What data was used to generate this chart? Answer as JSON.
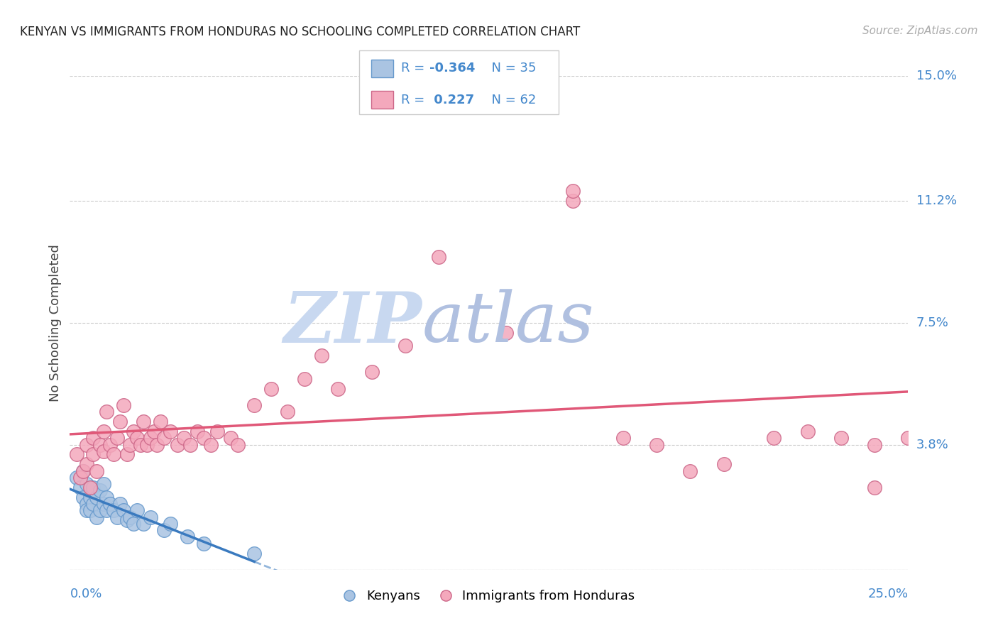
{
  "title": "KENYAN VS IMMIGRANTS FROM HONDURAS NO SCHOOLING COMPLETED CORRELATION CHART",
  "source": "Source: ZipAtlas.com",
  "ylabel": "No Schooling Completed",
  "xlim": [
    0.0,
    0.25
  ],
  "ylim": [
    0.0,
    0.15
  ],
  "yticks": [
    0.0,
    0.038,
    0.075,
    0.112,
    0.15
  ],
  "ytick_labels": [
    "",
    "3.8%",
    "7.5%",
    "11.2%",
    "15.0%"
  ],
  "kenyan_color": "#aac4e2",
  "honduras_color": "#f4a8bc",
  "kenyan_line_color": "#3a7abf",
  "honduras_line_color": "#e05878",
  "bg_color": "#ffffff",
  "watermark_color_zip": "#c8d8f0",
  "watermark_color_atlas": "#c0c8e8",
  "title_color": "#222222",
  "axis_label_color": "#4488cc",
  "kenyan_x": [
    0.002,
    0.003,
    0.004,
    0.004,
    0.005,
    0.005,
    0.005,
    0.006,
    0.006,
    0.007,
    0.007,
    0.008,
    0.008,
    0.009,
    0.009,
    0.01,
    0.01,
    0.011,
    0.011,
    0.012,
    0.013,
    0.014,
    0.015,
    0.016,
    0.017,
    0.018,
    0.019,
    0.02,
    0.022,
    0.024,
    0.028,
    0.03,
    0.035,
    0.04,
    0.055
  ],
  "kenyan_y": [
    0.028,
    0.025,
    0.022,
    0.03,
    0.02,
    0.018,
    0.026,
    0.022,
    0.018,
    0.025,
    0.02,
    0.022,
    0.016,
    0.024,
    0.018,
    0.02,
    0.026,
    0.018,
    0.022,
    0.02,
    0.018,
    0.016,
    0.02,
    0.018,
    0.015,
    0.016,
    0.014,
    0.018,
    0.014,
    0.016,
    0.012,
    0.014,
    0.01,
    0.008,
    0.005
  ],
  "honduras_x": [
    0.002,
    0.003,
    0.004,
    0.005,
    0.005,
    0.006,
    0.007,
    0.007,
    0.008,
    0.009,
    0.01,
    0.01,
    0.011,
    0.012,
    0.013,
    0.014,
    0.015,
    0.016,
    0.017,
    0.018,
    0.019,
    0.02,
    0.021,
    0.022,
    0.023,
    0.024,
    0.025,
    0.026,
    0.027,
    0.028,
    0.03,
    0.032,
    0.034,
    0.036,
    0.038,
    0.04,
    0.042,
    0.044,
    0.048,
    0.05,
    0.055,
    0.06,
    0.065,
    0.07,
    0.075,
    0.08,
    0.09,
    0.1,
    0.11,
    0.13,
    0.15,
    0.165,
    0.175,
    0.185,
    0.195,
    0.21,
    0.22,
    0.23,
    0.24,
    0.25,
    0.15,
    0.24
  ],
  "honduras_y": [
    0.035,
    0.028,
    0.03,
    0.032,
    0.038,
    0.025,
    0.04,
    0.035,
    0.03,
    0.038,
    0.042,
    0.036,
    0.048,
    0.038,
    0.035,
    0.04,
    0.045,
    0.05,
    0.035,
    0.038,
    0.042,
    0.04,
    0.038,
    0.045,
    0.038,
    0.04,
    0.042,
    0.038,
    0.045,
    0.04,
    0.042,
    0.038,
    0.04,
    0.038,
    0.042,
    0.04,
    0.038,
    0.042,
    0.04,
    0.038,
    0.05,
    0.055,
    0.048,
    0.058,
    0.065,
    0.055,
    0.06,
    0.068,
    0.095,
    0.072,
    0.112,
    0.04,
    0.038,
    0.03,
    0.032,
    0.04,
    0.042,
    0.04,
    0.038,
    0.04,
    0.115,
    0.025
  ]
}
